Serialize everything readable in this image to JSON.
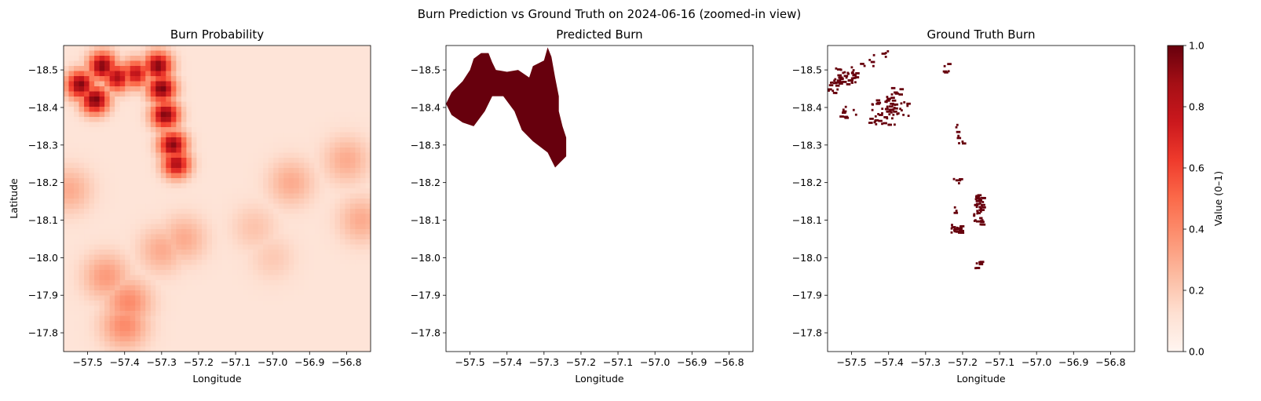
{
  "suptitle": "Burn Prediction vs Ground Truth on 2024-06-16 (zoomed-in view)",
  "colors": {
    "reds_dark": "#67000d",
    "reds_light": "#fff5f0",
    "reds_stops": [
      "#fff5f0",
      "#fee0d2",
      "#fcbba1",
      "#fc9272",
      "#fb6a4a",
      "#ef3b2c",
      "#cb181d",
      "#a50f15",
      "#67000d"
    ]
  },
  "chart_data": [
    {
      "type": "heatmap",
      "title": "Burn Probability",
      "xlabel": "Longitude",
      "ylabel": "Latitude",
      "xlim": [
        -57.565,
        -56.735
      ],
      "ylim": [
        17.75,
        18.565
      ],
      "x_ticks": [
        "−57.5",
        "−57.4",
        "−57.3",
        "−57.2",
        "−57.1",
        "−57.0",
        "−56.9",
        "−56.8"
      ],
      "x_tick_values": [
        -57.5,
        -57.4,
        -57.3,
        -57.2,
        -57.1,
        -57.0,
        -56.9,
        -56.8
      ],
      "y_ticks": [
        "−18.5",
        "−18.4",
        "−18.3",
        "−18.2",
        "−18.1",
        "−18.0",
        "−17.9",
        "−17.8"
      ],
      "y_tick_values": [
        18.5,
        18.4,
        18.3,
        18.2,
        18.1,
        18.0,
        17.9,
        17.8
      ],
      "colormap": "Reds",
      "value_range": [
        0,
        1
      ],
      "base_value": 0.1,
      "hotspots": [
        {
          "lon": -57.48,
          "lat": 18.42,
          "value": 0.97
        },
        {
          "lon": -57.52,
          "lat": 18.46,
          "value": 0.95
        },
        {
          "lon": -57.46,
          "lat": 18.51,
          "value": 0.95
        },
        {
          "lon": -57.42,
          "lat": 18.48,
          "value": 0.85
        },
        {
          "lon": -57.37,
          "lat": 18.49,
          "value": 0.8
        },
        {
          "lon": -57.31,
          "lat": 18.51,
          "value": 0.95
        },
        {
          "lon": -57.3,
          "lat": 18.45,
          "value": 0.97
        },
        {
          "lon": -57.29,
          "lat": 18.38,
          "value": 0.95
        },
        {
          "lon": -57.27,
          "lat": 18.3,
          "value": 0.93
        },
        {
          "lon": -57.26,
          "lat": 18.25,
          "value": 0.85
        },
        {
          "lon": -57.39,
          "lat": 17.88,
          "value": 0.4
        },
        {
          "lon": -57.45,
          "lat": 17.95,
          "value": 0.35
        },
        {
          "lon": -57.4,
          "lat": 17.82,
          "value": 0.4
        },
        {
          "lon": -57.3,
          "lat": 18.02,
          "value": 0.3
        },
        {
          "lon": -57.24,
          "lat": 18.05,
          "value": 0.3
        },
        {
          "lon": -57.55,
          "lat": 18.18,
          "value": 0.3
        },
        {
          "lon": -56.95,
          "lat": 18.2,
          "value": 0.3
        },
        {
          "lon": -56.8,
          "lat": 18.26,
          "value": 0.3
        },
        {
          "lon": -56.76,
          "lat": 18.1,
          "value": 0.3
        },
        {
          "lon": -57.05,
          "lat": 18.08,
          "value": 0.22
        },
        {
          "lon": -57.0,
          "lat": 18.0,
          "value": 0.2
        }
      ]
    },
    {
      "type": "heatmap",
      "title": "Predicted Burn",
      "xlabel": "Longitude",
      "xlim": [
        -57.565,
        -56.735
      ],
      "ylim": [
        17.75,
        18.565
      ],
      "x_ticks": [
        "−57.5",
        "−57.4",
        "−57.3",
        "−57.2",
        "−57.1",
        "−57.0",
        "−56.9",
        "−56.8"
      ],
      "x_tick_values": [
        -57.5,
        -57.4,
        -57.3,
        -57.2,
        -57.1,
        -57.0,
        -56.9,
        -56.8
      ],
      "y_ticks": [
        "−18.5",
        "−18.4",
        "−18.3",
        "−18.2",
        "−18.1",
        "−18.0",
        "−17.9",
        "−17.8"
      ],
      "y_tick_values": [
        18.5,
        18.4,
        18.3,
        18.2,
        18.1,
        18.0,
        17.9,
        17.8
      ],
      "colormap": "Reds",
      "value_range": [
        0,
        1
      ],
      "burn_value": 1,
      "burn_region": [
        [
          -57.565,
          18.41
        ],
        [
          -57.55,
          18.44
        ],
        [
          -57.52,
          18.47
        ],
        [
          -57.5,
          18.5
        ],
        [
          -57.49,
          18.53
        ],
        [
          -57.47,
          18.545
        ],
        [
          -57.45,
          18.545
        ],
        [
          -57.44,
          18.52
        ],
        [
          -57.43,
          18.5
        ],
        [
          -57.4,
          18.495
        ],
        [
          -57.37,
          18.5
        ],
        [
          -57.34,
          18.48
        ],
        [
          -57.33,
          18.51
        ],
        [
          -57.3,
          18.525
        ],
        [
          -57.29,
          18.56
        ],
        [
          -57.28,
          18.535
        ],
        [
          -57.27,
          18.48
        ],
        [
          -57.26,
          18.43
        ],
        [
          -57.26,
          18.39
        ],
        [
          -57.25,
          18.35
        ],
        [
          -57.24,
          18.32
        ],
        [
          -57.24,
          18.27
        ],
        [
          -57.27,
          18.24
        ],
        [
          -57.29,
          18.28
        ],
        [
          -57.33,
          18.31
        ],
        [
          -57.36,
          18.34
        ],
        [
          -57.38,
          18.39
        ],
        [
          -57.41,
          18.43
        ],
        [
          -57.44,
          18.43
        ],
        [
          -57.46,
          18.39
        ],
        [
          -57.49,
          18.35
        ],
        [
          -57.52,
          18.36
        ],
        [
          -57.55,
          18.38
        ]
      ]
    },
    {
      "type": "heatmap",
      "title": "Ground Truth Burn",
      "xlabel": "Longitude",
      "xlim": [
        -57.565,
        -56.735
      ],
      "ylim": [
        17.75,
        18.565
      ],
      "x_ticks": [
        "−57.5",
        "−57.4",
        "−57.3",
        "−57.2",
        "−57.1",
        "−57.0",
        "−56.9",
        "−56.8"
      ],
      "x_tick_values": [
        -57.5,
        -57.4,
        -57.3,
        -57.2,
        -57.1,
        -57.0,
        -56.9,
        -56.8
      ],
      "y_ticks": [
        "−18.5",
        "−18.4",
        "−18.3",
        "−18.2",
        "−18.1",
        "−18.0",
        "−17.9",
        "−17.8"
      ],
      "y_tick_values": [
        18.5,
        18.4,
        18.3,
        18.2,
        18.1,
        18.0,
        17.9,
        17.8
      ],
      "colormap": "Reds",
      "value_range": [
        0,
        1
      ],
      "burn_value": 1,
      "burn_clusters": [
        {
          "lon": -57.52,
          "lat": 18.485,
          "spread_lon": 0.03,
          "spread_lat": 0.025,
          "count": 38
        },
        {
          "lon": -57.55,
          "lat": 18.46,
          "spread_lon": 0.015,
          "spread_lat": 0.025,
          "count": 14
        },
        {
          "lon": -57.51,
          "lat": 18.39,
          "spread_lon": 0.03,
          "spread_lat": 0.015,
          "count": 10
        },
        {
          "lon": -57.42,
          "lat": 18.39,
          "spread_lon": 0.035,
          "spread_lat": 0.035,
          "count": 48
        },
        {
          "lon": -57.39,
          "lat": 18.44,
          "spread_lon": 0.02,
          "spread_lat": 0.02,
          "count": 12
        },
        {
          "lon": -57.36,
          "lat": 18.4,
          "spread_lon": 0.02,
          "spread_lat": 0.02,
          "count": 10
        },
        {
          "lon": -57.46,
          "lat": 18.53,
          "spread_lon": 0.02,
          "spread_lat": 0.02,
          "count": 6
        },
        {
          "lon": -57.41,
          "lat": 18.545,
          "spread_lon": 0.01,
          "spread_lat": 0.01,
          "count": 4
        },
        {
          "lon": -57.25,
          "lat": 18.5,
          "spread_lon": 0.01,
          "spread_lat": 0.02,
          "count": 5
        },
        {
          "lon": -57.21,
          "lat": 18.33,
          "spread_lon": 0.01,
          "spread_lat": 0.04,
          "count": 8
        },
        {
          "lon": -57.215,
          "lat": 18.205,
          "spread_lon": 0.012,
          "spread_lat": 0.008,
          "count": 5
        },
        {
          "lon": -57.16,
          "lat": 18.13,
          "spread_lon": 0.012,
          "spread_lat": 0.04,
          "count": 46
        },
        {
          "lon": -57.22,
          "lat": 18.08,
          "spread_lon": 0.015,
          "spread_lat": 0.012,
          "count": 20
        },
        {
          "lon": -57.16,
          "lat": 17.985,
          "spread_lon": 0.008,
          "spread_lat": 0.01,
          "count": 9
        },
        {
          "lon": -57.22,
          "lat": 18.13,
          "spread_lon": 0.008,
          "spread_lat": 0.01,
          "count": 3
        }
      ]
    }
  ],
  "colorbar": {
    "label": "Value (0–1)",
    "ticks": [
      "0.0",
      "0.2",
      "0.4",
      "0.6",
      "0.8",
      "1.0"
    ],
    "tick_values": [
      0,
      0.2,
      0.4,
      0.6,
      0.8,
      1
    ]
  }
}
